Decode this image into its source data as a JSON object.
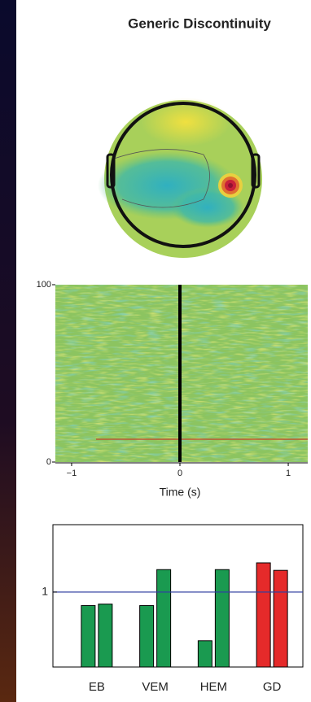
{
  "chart_data": [
    {
      "type": "topomap",
      "title": "Generic Discontinuity"
    },
    {
      "type": "heatmap",
      "xlabel": "Time (s)",
      "xlim": [
        -1.15,
        1.18
      ],
      "xticks": [
        {
          "value": -1,
          "label": "−1"
        },
        0,
        1
      ],
      "ylim": [
        0,
        100
      ],
      "yticks": [
        0,
        100
      ],
      "marker_x": 0
    },
    {
      "type": "bar",
      "categories": [
        "EB",
        "VEM",
        "HEM",
        "GD"
      ],
      "ylim": [
        0,
        1.9
      ],
      "yticks": [
        1
      ],
      "refline": 1,
      "series": [
        {
          "values": [
            0.82,
            0.82,
            0.35,
            1.39
          ],
          "colors": [
            "#1a9a50",
            "#1a9a50",
            "#1a9a50",
            "#e52a2a"
          ]
        },
        {
          "values": [
            0.84,
            1.3,
            1.3,
            1.29
          ],
          "colors": [
            "#1a9a50",
            "#1a9a50",
            "#1a9a50",
            "#e52a2a"
          ]
        }
      ]
    }
  ]
}
